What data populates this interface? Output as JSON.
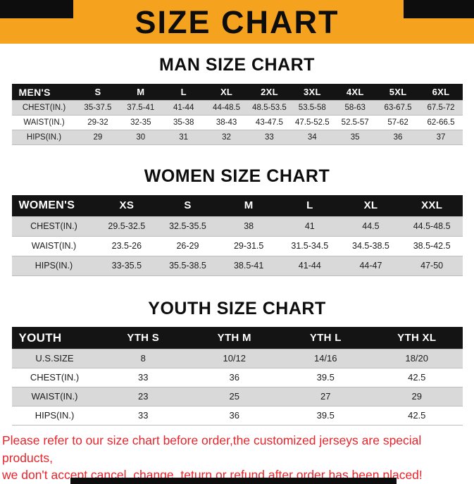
{
  "colors": {
    "banner-orange": "#F5A31E",
    "ink-black": "#0D0D0D",
    "header-bg": "#141414",
    "row-gray": "#D9D9D9",
    "alert-red": "#E8242B"
  },
  "banner": {
    "title": "SIZE CHART"
  },
  "sections": [
    {
      "heading": "MAN SIZE CHART",
      "table": {
        "header": [
          "MEN'S",
          "S",
          "M",
          "L",
          "XL",
          "2XL",
          "3XL",
          "4XL",
          "5XL",
          "6XL"
        ],
        "rows": [
          [
            "CHEST(IN.)",
            "35-37.5",
            "37.5-41",
            "41-44",
            "44-48.5",
            "48.5-53.5",
            "53.5-58",
            "58-63",
            "63-67.5",
            "67.5-72"
          ],
          [
            "WAIST(IN.)",
            "29-32",
            "32-35",
            "35-38",
            "38-43",
            "43-47.5",
            "47.5-52.5",
            "52.5-57",
            "57-62",
            "62-66.5"
          ],
          [
            "HIPS(IN.)",
            "29",
            "30",
            "31",
            "32",
            "33",
            "34",
            "35",
            "36",
            "37"
          ]
        ]
      }
    },
    {
      "heading": "WOMEN SIZE CHART",
      "table": {
        "header": [
          "WOMEN'S",
          "XS",
          "S",
          "M",
          "L",
          "XL",
          "XXL"
        ],
        "rows": [
          [
            "CHEST(IN.)",
            "29.5-32.5",
            "32.5-35.5",
            "38",
            "41",
            "44.5",
            "44.5-48.5"
          ],
          [
            "WAIST(IN.)",
            "23.5-26",
            "26-29",
            "29-31.5",
            "31.5-34.5",
            "34.5-38.5",
            "38.5-42.5"
          ],
          [
            "HIPS(IN.)",
            "33-35.5",
            "35.5-38.5",
            "38.5-41",
            "41-44",
            "44-47",
            "47-50"
          ]
        ]
      }
    },
    {
      "heading": "YOUTH SIZE CHART",
      "table": {
        "header": [
          "YOUTH",
          "YTH S",
          "YTH M",
          "YTH L",
          "YTH XL"
        ],
        "rows": [
          [
            "U.S.SIZE",
            "8",
            "10/12",
            "14/16",
            "18/20"
          ],
          [
            "CHEST(IN.)",
            "33",
            "36",
            "39.5",
            "42.5"
          ],
          [
            "WAIST(IN.)",
            "23",
            "25",
            "27",
            "29"
          ],
          [
            "HIPS(IN.)",
            "33",
            "36",
            "39.5",
            "42.5"
          ]
        ]
      }
    }
  ],
  "footer": {
    "line1": "Please refer to our size chart before order,the customized jerseys are special products,",
    "line2": "we don't accept cancel, change, teturn or refund after order has been placed!"
  }
}
